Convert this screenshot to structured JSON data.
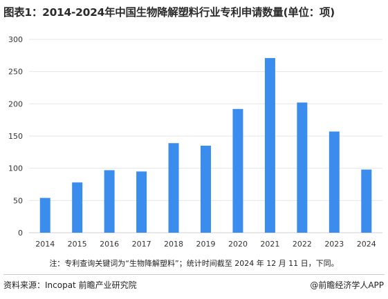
{
  "title": "图表1：2014-2024年中国生物降解塑料行业专利申请数量(单位：项)",
  "note": "注：专利查询关键词为“生物降解塑料”；统计时间截至 2024 年 12 月 11 日，下同。",
  "source": "资料来源：Incopat 前瞻产业研究院",
  "app": "@前瞻经济学人APP",
  "colors": {
    "bar": "#3b8ded",
    "grid": "#e6e6e6",
    "text": "#333333"
  },
  "chart_data": {
    "type": "bar",
    "categories": [
      "2014",
      "2015",
      "2016",
      "2017",
      "2018",
      "2019",
      "2020",
      "2021",
      "2022",
      "2023",
      "2024"
    ],
    "values": [
      54,
      78,
      97,
      95,
      139,
      135,
      192,
      271,
      202,
      157,
      98
    ],
    "ylim": [
      0,
      300
    ],
    "yticks": [
      0,
      50,
      100,
      150,
      200,
      250,
      300
    ],
    "grid": true,
    "xlabel": "",
    "ylabel": ""
  }
}
